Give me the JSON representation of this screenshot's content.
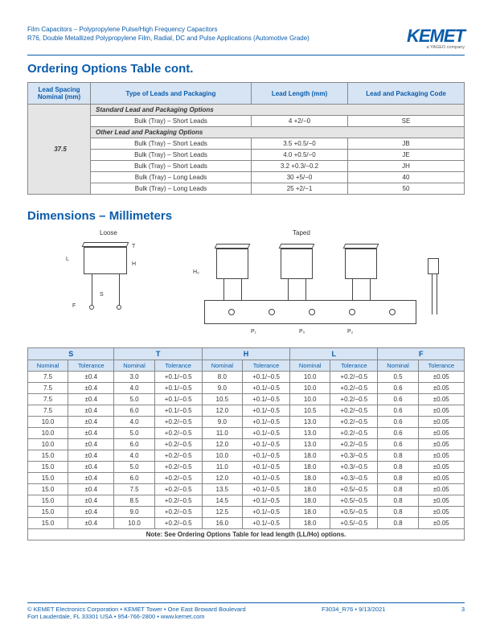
{
  "header": {
    "line1": "Film Capacitors – Polypropylene Pulse/High Frequency Capacitors",
    "line2": "R76, Double Metallized Polypropylene Film, Radial, DC and Pulse Applications (Automotive Grade)",
    "logo": "KEMET",
    "logo_sub": "a YAGEO company"
  },
  "section1": {
    "title": "Ordering Options Table cont.",
    "headers": [
      "Lead Spacing Nominal (mm)",
      "Type of Leads and Packaging",
      "Lead Length (mm)",
      "Lead and Packaging Code"
    ],
    "nominal": "37.5",
    "sub1": "Standard Lead and Packaging Options",
    "sub2": "Other Lead and Packaging Options",
    "row_std": [
      "Bulk (Tray) – Short Leads",
      "4 +2/−0",
      "SE"
    ],
    "rows_other": [
      [
        "Bulk (Tray) – Short Leads",
        "3.5 +0.5/−0",
        "JB"
      ],
      [
        "Bulk (Tray) – Short Leads",
        "4.0 +0.5/−0",
        "JE"
      ],
      [
        "Bulk (Tray) – Short Leads",
        "3.2 +0.3/−0.2",
        "JH"
      ],
      [
        "Bulk (Tray) – Long Leads",
        "30 +5/−0",
        "40"
      ],
      [
        "Bulk (Tray) – Long Leads",
        "25 +2/−1",
        "50"
      ]
    ]
  },
  "section2": {
    "title": "Dimensions – Millimeters",
    "diagram": {
      "loose": "Loose",
      "taped": "Taped",
      "L": "L",
      "T": "T",
      "H": "H",
      "S": "S",
      "F": "F",
      "H0": "H₀",
      "P1": "P₁",
      "P0": "P₀",
      "P2": "P₂"
    },
    "groups": [
      "S",
      "T",
      "H",
      "L",
      "F"
    ],
    "subheaders": [
      "Nominal",
      "Tolerance"
    ],
    "rows": [
      [
        "7.5",
        "±0.4",
        "3.0",
        "+0.1/−0.5",
        "8.0",
        "+0.1/−0.5",
        "10.0",
        "+0.2/−0.5",
        "0.5",
        "±0.05"
      ],
      [
        "7.5",
        "±0.4",
        "4.0",
        "+0.1/−0.5",
        "9.0",
        "+0.1/−0.5",
        "10.0",
        "+0.2/−0.5",
        "0.6",
        "±0.05"
      ],
      [
        "7.5",
        "±0.4",
        "5.0",
        "+0.1/−0.5",
        "10.5",
        "+0.1/−0.5",
        "10.0",
        "+0.2/−0.5",
        "0.6",
        "±0.05"
      ],
      [
        "7.5",
        "±0.4",
        "6.0",
        "+0.1/−0.5",
        "12.0",
        "+0.1/−0.5",
        "10.5",
        "+0.2/−0.5",
        "0.6",
        "±0.05"
      ],
      [
        "10.0",
        "±0.4",
        "4.0",
        "+0.2/−0.5",
        "9.0",
        "+0.1/−0.5",
        "13.0",
        "+0.2/−0.5",
        "0.6",
        "±0.05"
      ],
      [
        "10.0",
        "±0.4",
        "5.0",
        "+0.2/−0.5",
        "11.0",
        "+0.1/−0.5",
        "13.0",
        "+0.2/−0.5",
        "0.6",
        "±0.05"
      ],
      [
        "10.0",
        "±0.4",
        "6.0",
        "+0.2/−0.5",
        "12.0",
        "+0.1/−0.5",
        "13.0",
        "+0.2/−0.5",
        "0.6",
        "±0.05"
      ],
      [
        "15.0",
        "±0.4",
        "4.0",
        "+0.2/−0.5",
        "10.0",
        "+0.1/−0.5",
        "18.0",
        "+0.3/−0.5",
        "0.8",
        "±0.05"
      ],
      [
        "15.0",
        "±0.4",
        "5.0",
        "+0.2/−0.5",
        "11.0",
        "+0.1/−0.5",
        "18.0",
        "+0.3/−0.5",
        "0.8",
        "±0.05"
      ],
      [
        "15.0",
        "±0.4",
        "6.0",
        "+0.2/−0.5",
        "12.0",
        "+0.1/−0.5",
        "18.0",
        "+0.3/−0.5",
        "0.8",
        "±0.05"
      ],
      [
        "15.0",
        "±0.4",
        "7.5",
        "+0.2/−0.5",
        "13.5",
        "+0.1/−0.5",
        "18.0",
        "+0.5/−0.5",
        "0.8",
        "±0.05"
      ],
      [
        "15.0",
        "±0.4",
        "8.5",
        "+0.2/−0.5",
        "14.5",
        "+0.1/−0.5",
        "18.0",
        "+0.5/−0.5",
        "0.8",
        "±0.05"
      ],
      [
        "15.0",
        "±0.4",
        "9.0",
        "+0.2/−0.5",
        "12.5",
        "+0.1/−0.5",
        "18.0",
        "+0.5/−0.5",
        "0.8",
        "±0.05"
      ],
      [
        "15.0",
        "±0.4",
        "10.0",
        "+0.2/−0.5",
        "16.0",
        "+0.1/−0.5",
        "18.0",
        "+0.5/−0.5",
        "0.8",
        "±0.05"
      ]
    ],
    "note": "Note: See Ordering Options Table for lead length (LL/Ho) options."
  },
  "footer": {
    "left1": "© KEMET Electronics Corporation • KEMET Tower • One East Broward Boulevard",
    "left2": "Fort Lauderdale, FL 33301 USA • 954-766-2800 • www.kemet.com",
    "right": "F3034_R76 • 9/13/2021",
    "page": "3"
  }
}
